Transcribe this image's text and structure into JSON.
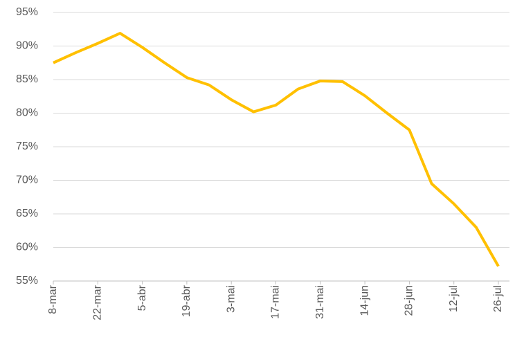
{
  "chart_data": {
    "type": "line",
    "categories": [
      "8-mar",
      null,
      "22-mar",
      null,
      "5-abr",
      null,
      "19-abr",
      null,
      "3-mai",
      null,
      "17-mai",
      null,
      "31-mai",
      null,
      "14-jun",
      null,
      "28-jun",
      null,
      "12-jul",
      null,
      "26-jul"
    ],
    "values": [
      87.5,
      89,
      90.4,
      91.9,
      89.8,
      87.5,
      85.3,
      84.2,
      82,
      80.2,
      81.2,
      83.6,
      84.8,
      84.7,
      82.6,
      80,
      77.5,
      69.5,
      66.5,
      63,
      57.2
    ],
    "color": "#ffc000",
    "ylim": [
      55,
      95
    ],
    "yticks": [
      {
        "value": 55,
        "label": "55%"
      },
      {
        "value": 60,
        "label": "60%"
      },
      {
        "value": 65,
        "label": "65%"
      },
      {
        "value": 70,
        "label": "70%"
      },
      {
        "value": 75,
        "label": "75%"
      },
      {
        "value": 80,
        "label": "80%"
      },
      {
        "value": 85,
        "label": "85%"
      },
      {
        "value": 90,
        "label": "90%"
      },
      {
        "value": 95,
        "label": "95%"
      }
    ],
    "grid": true
  }
}
